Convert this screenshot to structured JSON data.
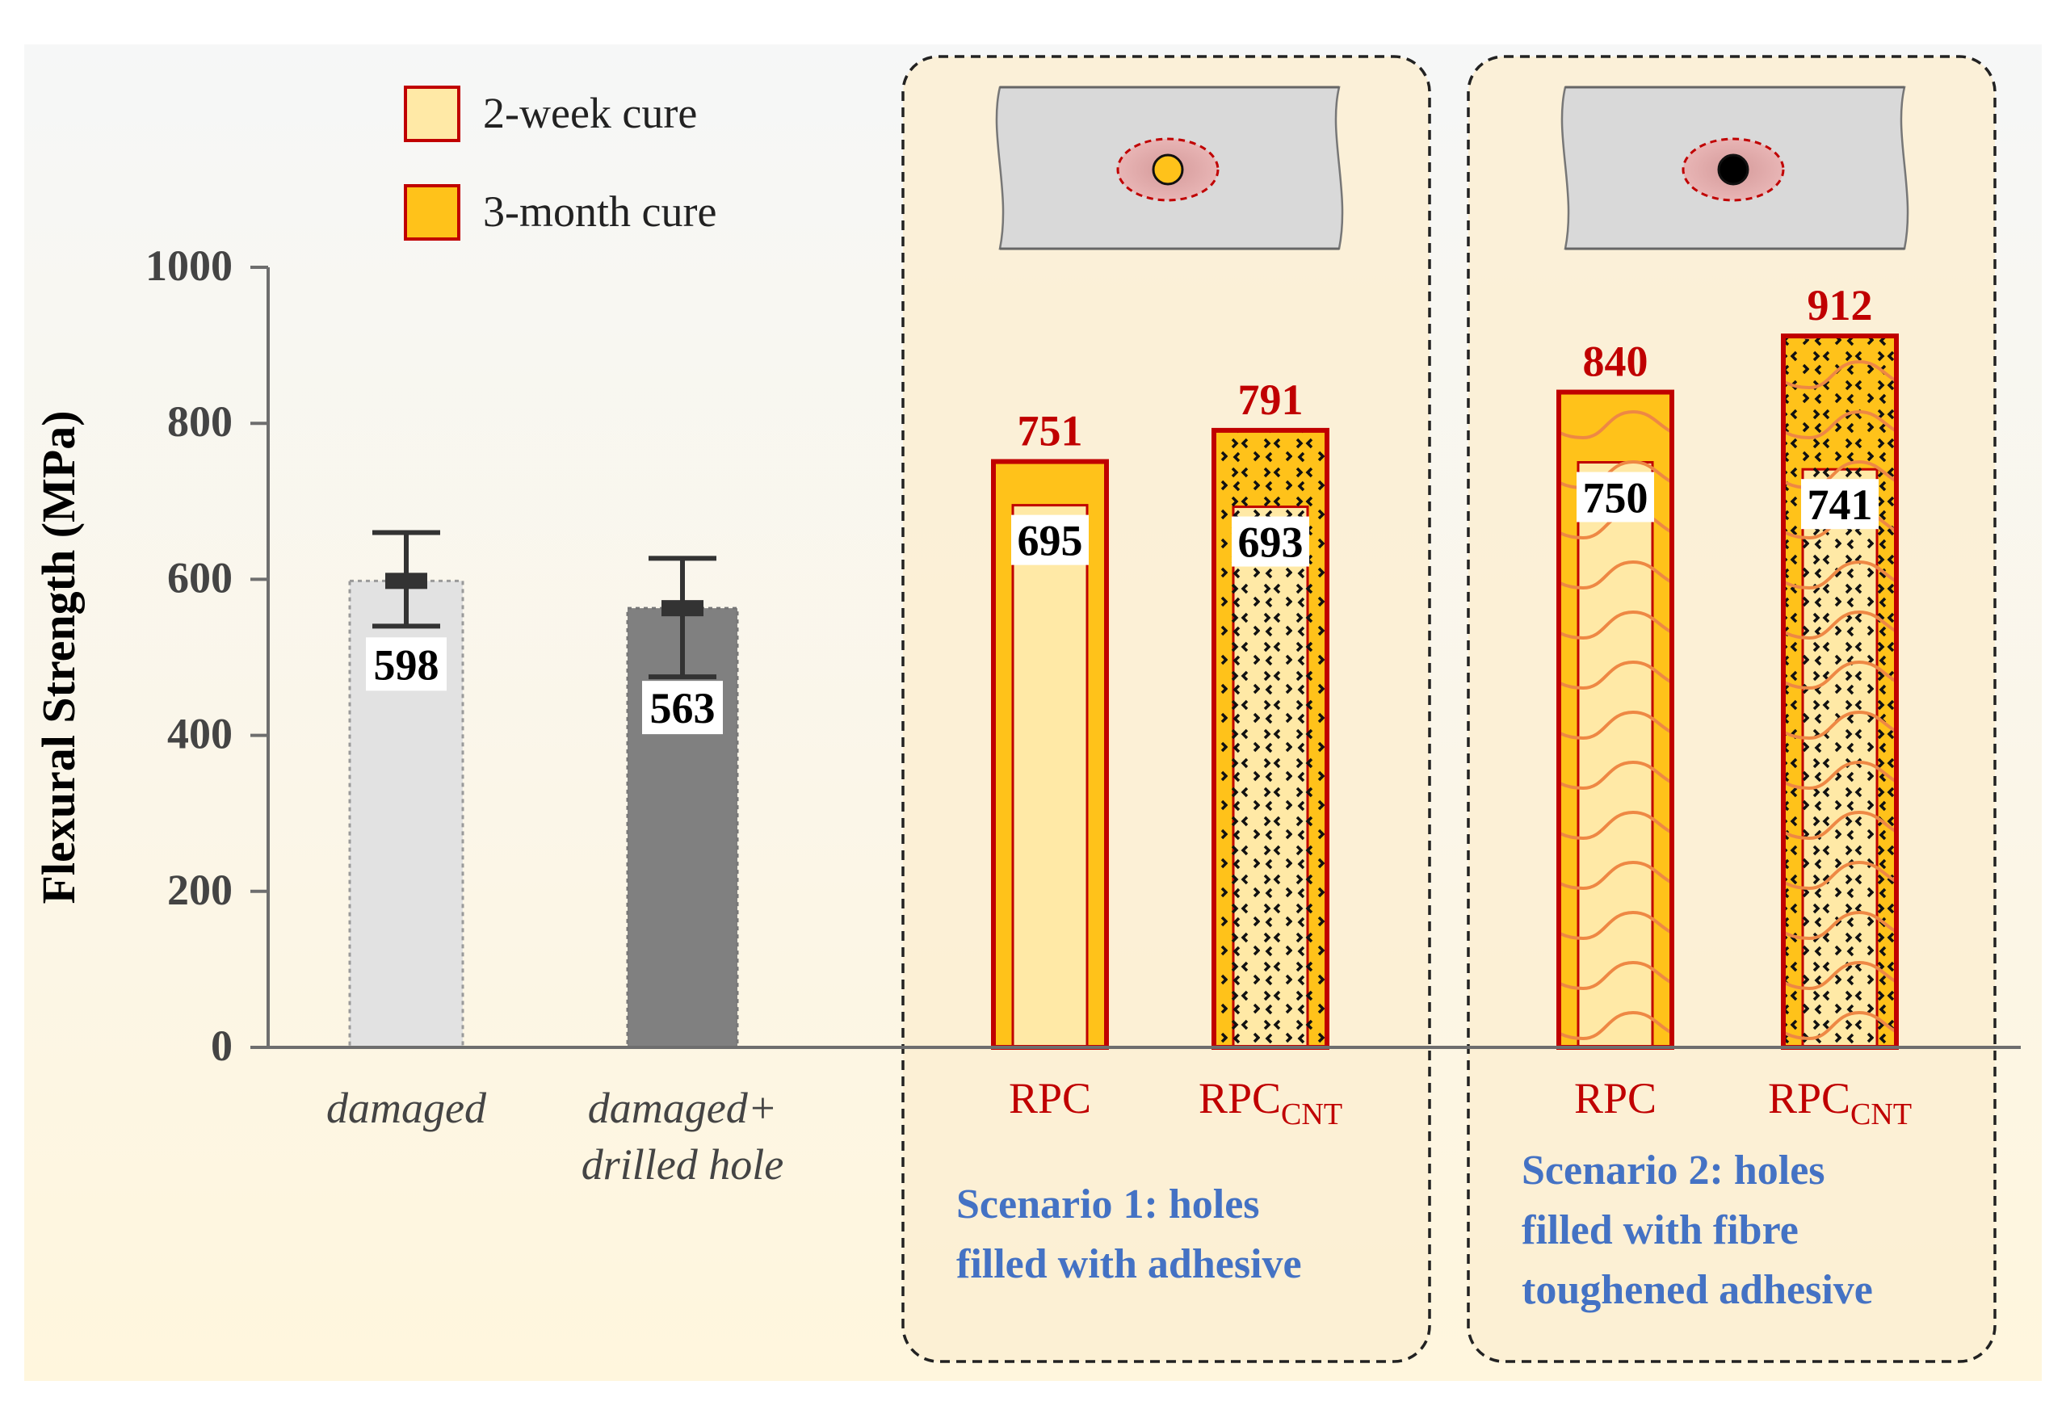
{
  "chart_data": {
    "type": "bar",
    "ylabel": "Flexural Strength (MPa)",
    "ylim": [
      0,
      1000
    ],
    "yticks": [
      0,
      200,
      400,
      600,
      800,
      1000
    ],
    "legend": [
      {
        "label": "2-week cure",
        "color": "#FFE9A6"
      },
      {
        "label": "3-month cure",
        "color": "#FFC21A"
      }
    ],
    "baseline": [
      {
        "label": "damaged",
        "label2": "",
        "value": 598,
        "error_low": 540,
        "error_high": 660,
        "fill": "#E2E2E2"
      },
      {
        "label": "damaged+",
        "label2": "drilled hole",
        "value": 563,
        "error_low": 475,
        "error_high": 627,
        "fill": "#808080"
      }
    ],
    "scenarios": [
      {
        "title_lines": [
          "Scenario 1: holes",
          "filled with adhesive"
        ],
        "filler": "plain-dot",
        "bars": [
          {
            "label": "RPC",
            "sub": "",
            "two_week": 695,
            "three_month": 751,
            "pattern": "none"
          },
          {
            "label": "RPC",
            "sub": "CNT",
            "two_week": 693,
            "three_month": 791,
            "pattern": "cnt"
          }
        ]
      },
      {
        "title_lines": [
          "Scenario 2: holes",
          "filled with fibre",
          "toughened adhesive"
        ],
        "filler": "fibre-dot",
        "bars": [
          {
            "label": "RPC",
            "sub": "",
            "two_week": 750,
            "three_month": 840,
            "pattern": "fibre"
          },
          {
            "label": "RPC",
            "sub": "CNT",
            "two_week": 741,
            "three_month": 912,
            "pattern": "fibre-cnt"
          }
        ]
      }
    ]
  },
  "colors": {
    "axis": "#6E6E6E",
    "value_red": "#C00000",
    "scenario_blue": "#4472C4",
    "bar_outline": "#C00000",
    "fibre": "#EE8844"
  }
}
